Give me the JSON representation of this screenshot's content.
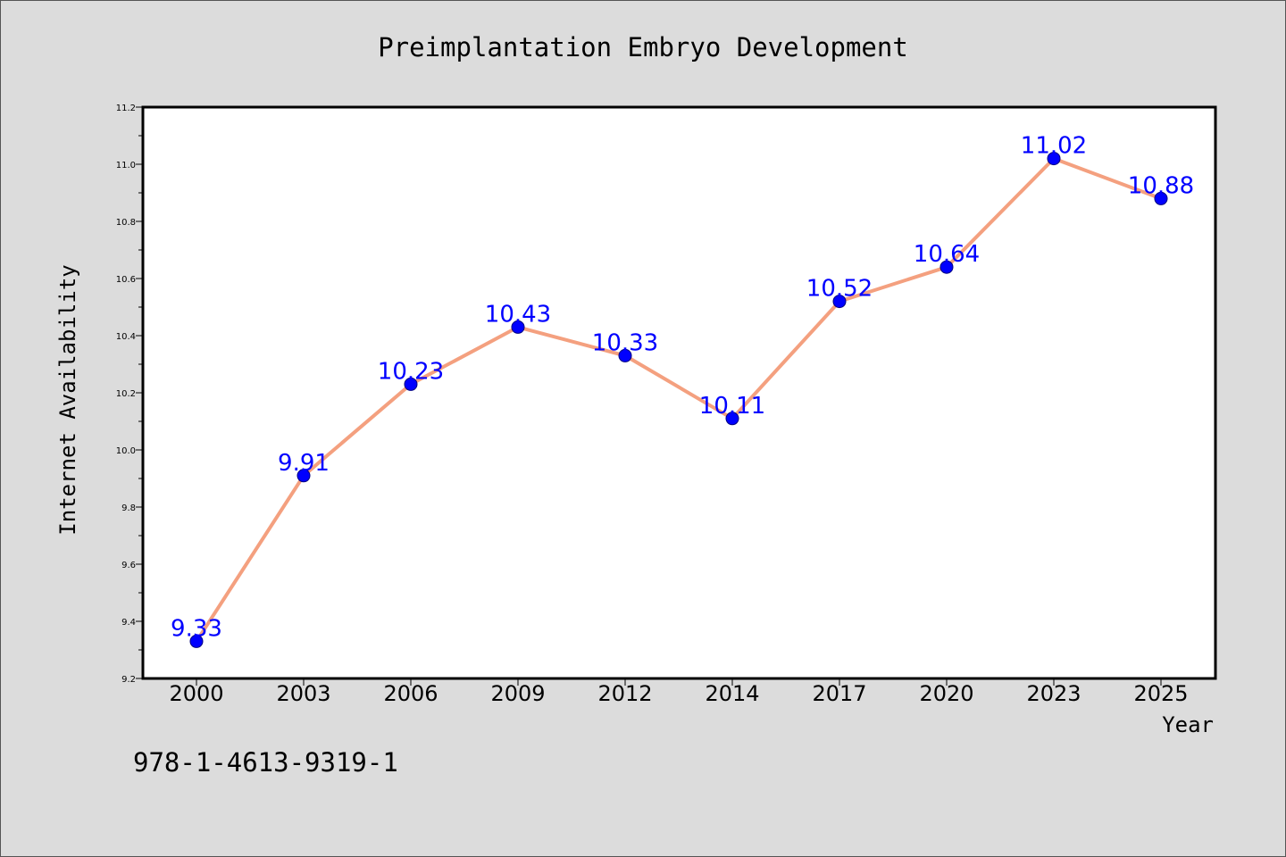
{
  "chart_data": {
    "type": "line",
    "title": "Preimplantation Embryo Development",
    "xlabel": "Year",
    "ylabel": "Internet Availability",
    "categories": [
      "2000",
      "2003",
      "2006",
      "2009",
      "2012",
      "2014",
      "2017",
      "2020",
      "2023",
      "2025"
    ],
    "values": [
      9.33,
      9.91,
      10.23,
      10.43,
      10.33,
      10.11,
      10.52,
      10.64,
      11.02,
      10.88
    ],
    "data_labels": [
      "9.33",
      "9.91",
      "10.23",
      "10.43",
      "10.33",
      "10.11",
      "10.52",
      "10.64",
      "11.02",
      "10.88"
    ],
    "ylim": [
      9.2,
      11.2
    ],
    "yticks": [
      "9.2",
      "9.4",
      "9.6",
      "9.8",
      "10.0",
      "10.2",
      "10.4",
      "10.6",
      "10.8",
      "11.0",
      "11.2"
    ],
    "grid": false,
    "line_color": "#f4a07f",
    "marker_color": "#0000ff",
    "label_color": "#0000ff"
  },
  "footer": {
    "text": "978-1-4613-9319-1"
  }
}
